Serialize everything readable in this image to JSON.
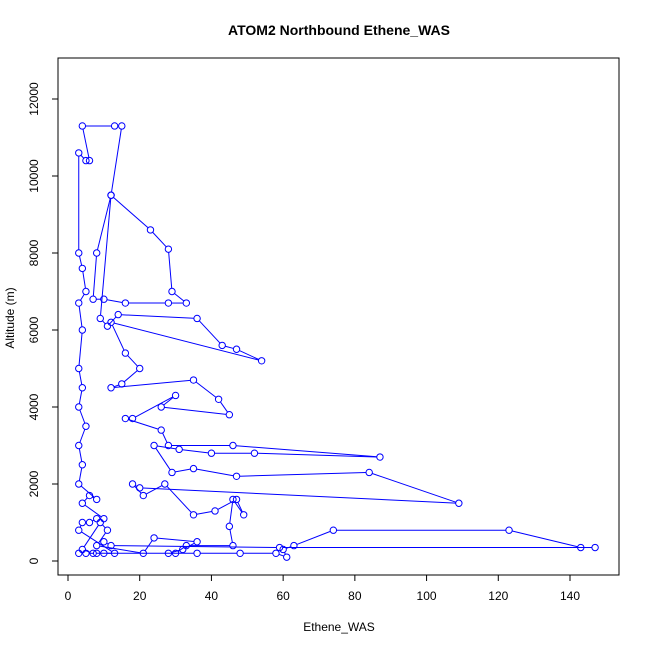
{
  "chart_data": {
    "type": "scatter",
    "title": "ATOM2 Northbound Ethene_WAS",
    "xlabel": "Ethene_WAS",
    "ylabel": "Altitude (m)",
    "xlim": [
      0,
      150
    ],
    "ylim": [
      0,
      13000
    ],
    "xticks": [
      0,
      20,
      40,
      60,
      80,
      100,
      120,
      140
    ],
    "yticks": [
      0,
      2000,
      4000,
      6000,
      8000,
      10000,
      12000
    ],
    "grid": false,
    "legend": "none",
    "series_color": "#0000ff",
    "marker": "open-circle",
    "connect_points": true,
    "series": [
      {
        "values": [
          [
            3,
            200
          ],
          [
            5,
            200
          ],
          [
            8,
            200
          ],
          [
            10,
            200
          ],
          [
            13,
            200
          ],
          [
            3,
            800
          ],
          [
            4,
            1000
          ],
          [
            6,
            1000
          ],
          [
            8,
            1100
          ],
          [
            10,
            1100
          ],
          [
            4,
            1500
          ],
          [
            6,
            1700
          ],
          [
            8,
            1600
          ],
          [
            3,
            2000
          ],
          [
            4,
            2500
          ],
          [
            3,
            3000
          ],
          [
            5,
            3500
          ],
          [
            3,
            4000
          ],
          [
            4,
            4500
          ],
          [
            3,
            5000
          ],
          [
            4,
            6000
          ],
          [
            3,
            6700
          ],
          [
            5,
            7000
          ],
          [
            4,
            7600
          ],
          [
            3,
            8000
          ],
          [
            3,
            10600
          ],
          [
            5,
            10400
          ],
          [
            6,
            10400
          ],
          [
            4,
            11300
          ],
          [
            13,
            11300
          ],
          [
            15,
            11300
          ],
          [
            12,
            9500
          ],
          [
            8,
            8000
          ],
          [
            7,
            6800
          ],
          [
            10,
            6800
          ],
          [
            16,
            6700
          ],
          [
            28,
            6700
          ],
          [
            33,
            6700
          ],
          [
            29,
            7000
          ],
          [
            28,
            8100
          ],
          [
            23,
            8600
          ],
          [
            12,
            9500
          ],
          [
            9,
            6300
          ],
          [
            11,
            6100
          ],
          [
            14,
            6400
          ],
          [
            36,
            6300
          ],
          [
            43,
            5600
          ],
          [
            47,
            5500
          ],
          [
            54,
            5200
          ],
          [
            12,
            6200
          ],
          [
            16,
            5400
          ],
          [
            20,
            5000
          ],
          [
            15,
            4600
          ],
          [
            12,
            4500
          ],
          [
            35,
            4700
          ],
          [
            42,
            4200
          ],
          [
            45,
            3800
          ],
          [
            26,
            4000
          ],
          [
            30,
            4300
          ],
          [
            18,
            3700
          ],
          [
            16,
            3700
          ],
          [
            26,
            3400
          ],
          [
            28,
            3000
          ],
          [
            46,
            3000
          ],
          [
            87,
            2700
          ],
          [
            52,
            2800
          ],
          [
            40,
            2800
          ],
          [
            31,
            2900
          ],
          [
            24,
            3000
          ],
          [
            29,
            2300
          ],
          [
            35,
            2400
          ],
          [
            47,
            2200
          ],
          [
            84,
            2300
          ],
          [
            109,
            1500
          ],
          [
            20,
            1900
          ],
          [
            18,
            2000
          ],
          [
            21,
            1700
          ],
          [
            27,
            2000
          ],
          [
            35,
            1200
          ],
          [
            41,
            1300
          ],
          [
            47,
            1600
          ],
          [
            49,
            1200
          ],
          [
            46,
            1600
          ],
          [
            45,
            900
          ],
          [
            46,
            400
          ],
          [
            33,
            400
          ],
          [
            30,
            200
          ],
          [
            28,
            200
          ],
          [
            32,
            300
          ],
          [
            36,
            500
          ],
          [
            24,
            600
          ],
          [
            21,
            200
          ],
          [
            8,
            400
          ],
          [
            11,
            800
          ],
          [
            9,
            1000
          ],
          [
            4,
            300
          ],
          [
            7,
            200
          ],
          [
            36,
            200
          ],
          [
            48,
            200
          ],
          [
            58,
            200
          ],
          [
            61,
            100
          ],
          [
            60,
            300
          ],
          [
            63,
            400
          ],
          [
            74,
            800
          ],
          [
            123,
            800
          ],
          [
            143,
            350
          ],
          [
            147,
            350
          ],
          [
            59,
            350
          ],
          [
            12,
            400
          ],
          [
            10,
            500
          ]
        ]
      }
    ]
  }
}
